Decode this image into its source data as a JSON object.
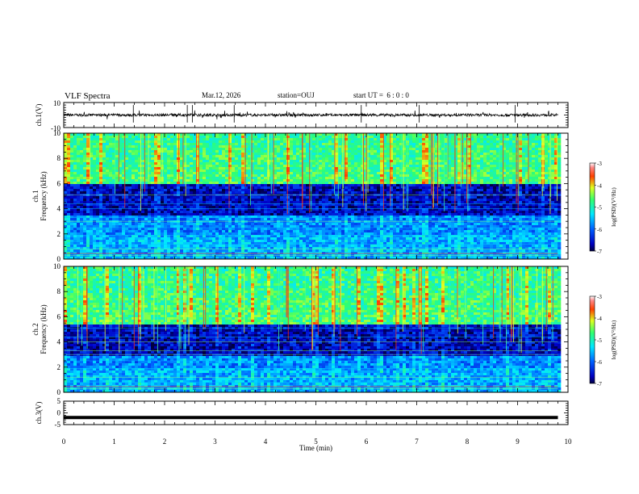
{
  "header": {
    "title": "VLF Spectra",
    "date": "Mar.12, 2026",
    "station": "station=OUJ",
    "start": "start UT =  6 : 0 : 0"
  },
  "chart_data": [
    {
      "type": "line",
      "panel": "ch1-waveform",
      "ylabel": "ch.1(V)",
      "xlim": [
        0,
        10
      ],
      "ylim": [
        -10,
        10
      ],
      "yticks": [
        "10",
        "-10"
      ],
      "baseline": 0,
      "color": "#000000"
    },
    {
      "type": "heatmap",
      "panel": "ch1-spectrogram",
      "ylabel_top": "ch.1",
      "ylabel": "Frequency (kHz)",
      "xlim": [
        0,
        10
      ],
      "ylim": [
        0,
        10
      ],
      "yticks": [
        "0",
        "2",
        "4",
        "6",
        "8",
        "10"
      ],
      "data_xmax": 9.8,
      "colorbar": {
        "label": "log(PSD)(V²/Hz)",
        "range": [
          -7,
          -3
        ],
        "ticks": [
          "-3",
          "-4",
          "-5",
          "-6",
          "-7"
        ]
      },
      "dark_band_khz": [
        3.5,
        6
      ]
    },
    {
      "type": "heatmap",
      "panel": "ch2-spectrogram",
      "ylabel_top": "ch.2",
      "ylabel": "Frequency (kHz)",
      "xlim": [
        0,
        10
      ],
      "ylim": [
        0,
        10
      ],
      "yticks": [
        "0",
        "2",
        "4",
        "6",
        "8",
        "10"
      ],
      "data_xmax": 9.8,
      "colorbar": {
        "label": "log(PSD)(V²/Hz)",
        "range": [
          -7,
          -3
        ],
        "ticks": [
          "-3",
          "-4",
          "-5",
          "-6",
          "-7"
        ]
      },
      "dark_band_khz": [
        3.0,
        5.5
      ]
    },
    {
      "type": "line",
      "panel": "ch3-waveform",
      "ylabel": "ch.3(V)",
      "xlabel": "Time (min)",
      "xlim": [
        0,
        10
      ],
      "ylim": [
        -5,
        5
      ],
      "yticks": [
        "5",
        "0",
        "-5"
      ],
      "xticks": [
        "0",
        "1",
        "2",
        "3",
        "4",
        "5",
        "6",
        "7",
        "8",
        "9",
        "10"
      ],
      "level": -2,
      "color": "#000000"
    }
  ]
}
